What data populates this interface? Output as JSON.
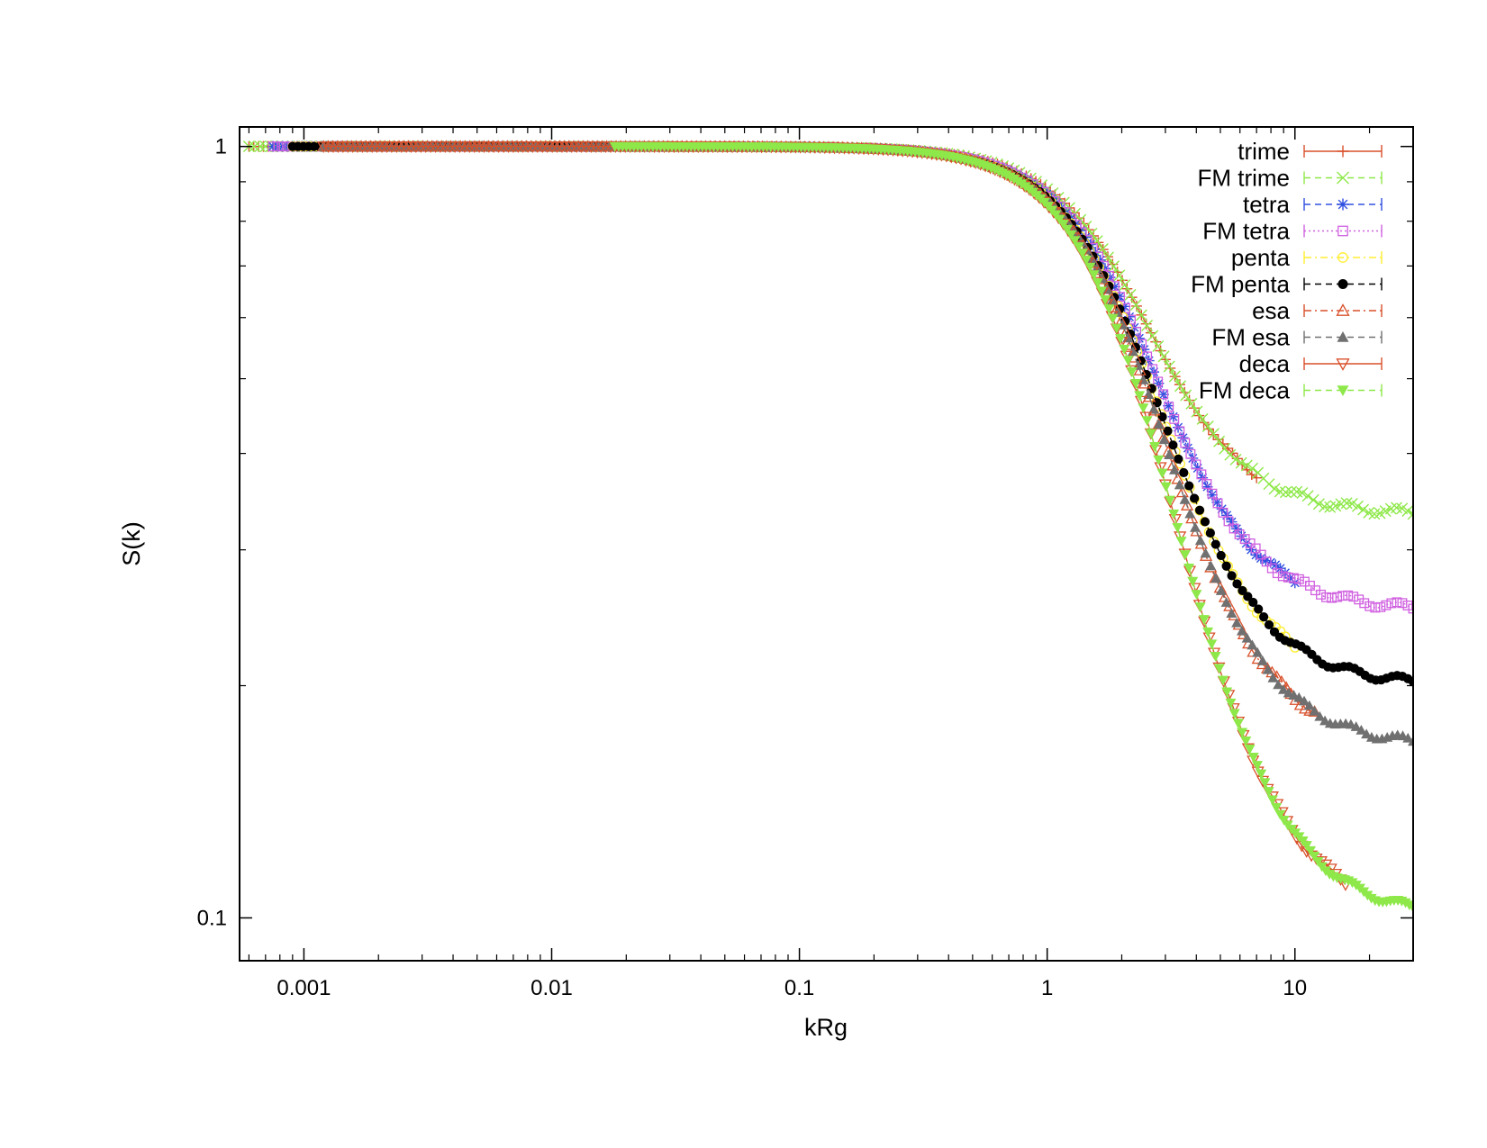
{
  "chart_data": {
    "type": "line",
    "title": "",
    "xlabel": "kRg",
    "ylabel": "S(k)",
    "xscale": "log",
    "yscale": "log",
    "xlim": [
      0.00055,
      30
    ],
    "ylim": [
      0.088,
      1.06
    ],
    "grid": false,
    "legend_position": "top-right",
    "x_ticks": [
      {
        "value": 0.001,
        "label": "0.001"
      },
      {
        "value": 0.01,
        "label": "0.01"
      },
      {
        "value": 0.1,
        "label": "0.1"
      },
      {
        "value": 1,
        "label": "1"
      },
      {
        "value": 10,
        "label": "10"
      }
    ],
    "y_ticks": [
      {
        "value": 0.1,
        "label": "0.1"
      },
      {
        "value": 1,
        "label": "1"
      }
    ],
    "series": [
      {
        "name": "trime",
        "color": "#d9502a",
        "marker": "plus",
        "line": "solid",
        "s_inf": 0.333,
        "x_min": 0.0006,
        "x_max": 7
      },
      {
        "name": "FM trime",
        "color": "#8ee84a",
        "marker": "cross",
        "line": "dashed",
        "s_inf": 0.333,
        "x_min": 0.0006,
        "x_max": 30
      },
      {
        "name": "tetra",
        "color": "#3050e0",
        "marker": "star",
        "line": "dashed",
        "s_inf": 0.25,
        "x_min": 0.00075,
        "x_max": 10
      },
      {
        "name": "FM tetra",
        "color": "#d060e0",
        "marker": "square-open",
        "line": "dotted",
        "s_inf": 0.25,
        "x_min": 0.00075,
        "x_max": 30
      },
      {
        "name": "penta",
        "color": "#ffee30",
        "marker": "circle-open",
        "line": "dashdot",
        "s_inf": 0.2,
        "x_min": 0.0009,
        "x_max": 10
      },
      {
        "name": "FM penta",
        "color": "#000000",
        "marker": "circle-filled",
        "line": "dashed",
        "s_inf": 0.2,
        "x_min": 0.0009,
        "x_max": 30
      },
      {
        "name": "esa",
        "color": "#d9502a",
        "marker": "triangle-open",
        "line": "dashdot",
        "s_inf": 0.1667,
        "x_min": 0.0012,
        "x_max": 12
      },
      {
        "name": "FM esa",
        "color": "#707070",
        "marker": "triangle-filled",
        "line": "dashed",
        "s_inf": 0.1667,
        "x_min": 0.0012,
        "x_max": 30
      },
      {
        "name": "deca",
        "color": "#d9502a",
        "marker": "triangle-down-open",
        "line": "solid",
        "s_inf": 0.1,
        "x_min": 0.0012,
        "x_max": 16
      },
      {
        "name": "FM deca",
        "color": "#8ee84a",
        "marker": "triangle-down-filled",
        "line": "dashed",
        "s_inf": 0.1,
        "x_min": 0.018,
        "x_max": 30
      }
    ]
  }
}
